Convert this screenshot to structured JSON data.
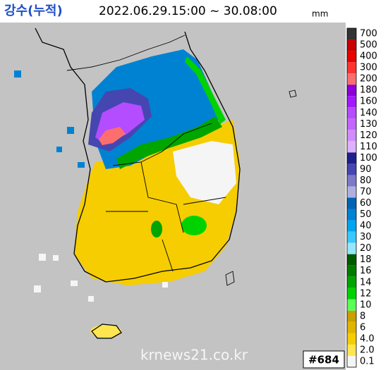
{
  "header": {
    "title": "강수(누적)",
    "period": "2022.06.29.15:00 ~ 30.08:00",
    "unit": "mm"
  },
  "legend": [
    {
      "label": "700",
      "color": "#333333"
    },
    {
      "label": "500",
      "color": "#c80000"
    },
    {
      "label": "400",
      "color": "#e60000"
    },
    {
      "label": "300",
      "color": "#ff3232"
    },
    {
      "label": "200",
      "color": "#ff6e6e"
    },
    {
      "label": "180",
      "color": "#8c00d9"
    },
    {
      "label": "160",
      "color": "#a31aff"
    },
    {
      "label": "140",
      "color": "#b44cff"
    },
    {
      "label": "130",
      "color": "#c266ff"
    },
    {
      "label": "120",
      "color": "#d08cff"
    },
    {
      "label": "110",
      "color": "#deb0ff"
    },
    {
      "label": "100",
      "color": "#1f1f8c"
    },
    {
      "label": "90",
      "color": "#4646b0"
    },
    {
      "label": "80",
      "color": "#7a7ac8"
    },
    {
      "label": "70",
      "color": "#b0b0e0"
    },
    {
      "label": "60",
      "color": "#0064b4"
    },
    {
      "label": "50",
      "color": "#0082d2"
    },
    {
      "label": "40",
      "color": "#00a5f0"
    },
    {
      "label": "30",
      "color": "#3cc8ff"
    },
    {
      "label": "20",
      "color": "#96e6ff"
    },
    {
      "label": "18",
      "color": "#005a00"
    },
    {
      "label": "16",
      "color": "#007d00"
    },
    {
      "label": "14",
      "color": "#00a500"
    },
    {
      "label": "12",
      "color": "#00d200"
    },
    {
      "label": "10",
      "color": "#5aff5a"
    },
    {
      "label": "8",
      "color": "#c8a000"
    },
    {
      "label": "6",
      "color": "#e0b400"
    },
    {
      "label": "4.0",
      "color": "#f5cd00"
    },
    {
      "label": "2.0",
      "color": "#ffe650"
    },
    {
      "label": "0.1",
      "color": "#f5f5f5"
    }
  ],
  "frame": "#684",
  "watermark": "krnews21.co.kr"
}
